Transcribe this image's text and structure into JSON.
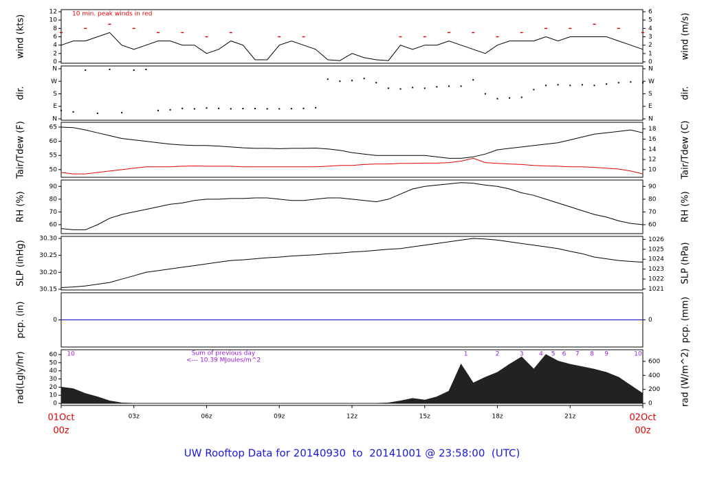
{
  "chart_data": [
    {
      "type": "line",
      "ylabel": "wind (kts)",
      "y2label": "wind (m/s)",
      "note": "10 min. peak winds in red",
      "x": [
        0,
        0.5,
        1,
        1.5,
        2,
        2.5,
        3,
        3.5,
        4,
        4.5,
        5,
        5.5,
        6,
        6.5,
        7,
        7.5,
        8,
        8.5,
        9,
        9.5,
        10,
        10.5,
        11,
        11.5,
        12,
        12.5,
        13,
        13.5,
        14,
        14.5,
        15,
        15.5,
        16,
        16.5,
        17,
        17.5,
        18,
        18.5,
        19,
        19.5,
        20,
        20.5,
        21,
        21.5,
        22,
        22.5,
        23,
        23.5,
        24
      ],
      "series": [
        {
          "color": "#000000",
          "values": [
            4,
            5,
            5,
            6,
            7,
            4,
            3,
            4,
            5,
            5,
            4,
            4,
            2,
            3,
            5,
            4,
            0.5,
            0.5,
            4,
            5,
            4,
            3,
            0.5,
            0.3,
            2,
            1,
            0.5,
            0.3,
            4,
            3,
            4,
            4,
            5,
            4,
            3,
            2,
            4,
            5,
            5,
            5,
            6,
            5,
            6,
            6,
            6,
            6,
            5,
            4,
            3
          ]
        },
        {
          "color": "#e00000",
          "marker": "dash",
          "x": [
            0,
            1,
            2,
            3,
            4,
            5,
            6,
            7,
            8,
            9,
            10,
            11,
            12,
            13,
            14,
            15,
            16,
            17,
            18,
            19,
            20,
            21,
            22,
            23,
            24
          ],
          "values": [
            7,
            8,
            9,
            8,
            7,
            7,
            6,
            7,
            null,
            6,
            6,
            null,
            null,
            null,
            6,
            6,
            7,
            7,
            6,
            7,
            8,
            8,
            9,
            8,
            7
          ]
        }
      ],
      "ylim": [
        -0.33,
        12.5
      ],
      "yticks": [
        0,
        2,
        4,
        6,
        8,
        10,
        12
      ],
      "y2lim": [
        -0.16,
        6.25
      ],
      "y2ticks": [
        0,
        1,
        2,
        3,
        4,
        5,
        6
      ]
    },
    {
      "type": "scatter",
      "ylabel": "dir.",
      "y2label": "dir.",
      "x": [
        0,
        0.5,
        1,
        1.5,
        2,
        2.5,
        3,
        3.5,
        4,
        4.5,
        5,
        5.5,
        6,
        6.5,
        7,
        7.5,
        8,
        8.5,
        9,
        9.5,
        10,
        10.5,
        11,
        11.5,
        12,
        12.5,
        13,
        13.5,
        14,
        14.5,
        15,
        15.5,
        16,
        16.5,
        17,
        17.5,
        18,
        18.5,
        19,
        19.5,
        20,
        20.5,
        21,
        21.5,
        22,
        22.5,
        23,
        23.5,
        24
      ],
      "series": [
        {
          "color": "#000000",
          "values": [
            60,
            50,
            350,
            40,
            355,
            45,
            350,
            355,
            60,
            65,
            75,
            72,
            78,
            75,
            72,
            74,
            74,
            72,
            72,
            73,
            75,
            80,
            285,
            270,
            275,
            290,
            260,
            220,
            215,
            225,
            220,
            230,
            235,
            235,
            280,
            180,
            145,
            150,
            155,
            210,
            240,
            245,
            240,
            245,
            240,
            250,
            260,
            265,
            260
          ]
        }
      ],
      "ylim": [
        -10,
        380
      ],
      "yticks": [
        {
          "value": 0,
          "label": "N"
        },
        {
          "value": 90,
          "label": "E"
        },
        {
          "value": 180,
          "label": "S"
        },
        {
          "value": 270,
          "label": "W"
        },
        {
          "value": 360,
          "label": "N"
        }
      ],
      "y2lim": [
        -10,
        380
      ],
      "y2ticks": [
        {
          "value": 0,
          "label": "N"
        },
        {
          "value": 90,
          "label": "E"
        },
        {
          "value": 180,
          "label": "S"
        },
        {
          "value": 270,
          "label": "W"
        },
        {
          "value": 360,
          "label": "N"
        }
      ]
    },
    {
      "type": "line",
      "ylabel": "Tair/Tdew (F)",
      "y2label": "Tair/Tdew (C)",
      "x": [
        0,
        0.5,
        1,
        1.5,
        2,
        2.5,
        3,
        3.5,
        4,
        4.5,
        5,
        5.5,
        6,
        6.5,
        7,
        7.5,
        8,
        8.5,
        9,
        9.5,
        10,
        10.5,
        11,
        11.5,
        12,
        12.5,
        13,
        13.5,
        14,
        14.5,
        15,
        15.5,
        16,
        16.5,
        17,
        17.5,
        18,
        18.5,
        19,
        19.5,
        20,
        20.5,
        21,
        21.5,
        22,
        22.5,
        23,
        23.5,
        24
      ],
      "series": [
        {
          "color": "#000000",
          "values": [
            65,
            64.8,
            64,
            63,
            62,
            61,
            60.5,
            60,
            59.5,
            59,
            58.7,
            58.5,
            58.5,
            58.3,
            58,
            57.7,
            57.5,
            57.5,
            57.4,
            57.5,
            57.5,
            57.6,
            57.3,
            56.8,
            56,
            55.5,
            55,
            55,
            55,
            55,
            55,
            54.5,
            54,
            54,
            54.5,
            55.5,
            57,
            57.5,
            58,
            58.5,
            59,
            59.5,
            60.5,
            61.5,
            62.5,
            63,
            63.5,
            64,
            63
          ]
        },
        {
          "color": "#e00000",
          "values": [
            49,
            48.5,
            48.5,
            49,
            49.5,
            50,
            50.5,
            51,
            51,
            51,
            51.2,
            51.3,
            51.2,
            51.2,
            51.2,
            51,
            51,
            51,
            51,
            51,
            51,
            51,
            51.2,
            51.5,
            51.5,
            51.8,
            52,
            52,
            52.2,
            52.2,
            52.3,
            52.3,
            52.5,
            53,
            54,
            52.5,
            52.2,
            52,
            51.8,
            51.5,
            51.3,
            51.2,
            51,
            51,
            50.8,
            50.5,
            50.2,
            49.5,
            48.5
          ]
        }
      ],
      "ylim": [
        47.3,
        66.7
      ],
      "yticks": [
        50,
        55,
        60,
        65
      ],
      "y2lim": [
        8.5,
        19.3
      ],
      "y2ticks": [
        10,
        12,
        14,
        16,
        18
      ]
    },
    {
      "type": "line",
      "ylabel": "RH (%)",
      "y2label": "RH (%)",
      "x": [
        0,
        0.5,
        1,
        1.5,
        2,
        2.5,
        3,
        3.5,
        4,
        4.5,
        5,
        5.5,
        6,
        6.5,
        7,
        7.5,
        8,
        8.5,
        9,
        9.5,
        10,
        10.5,
        11,
        11.5,
        12,
        12.5,
        13,
        13.5,
        14,
        14.5,
        15,
        15.5,
        16,
        16.5,
        17,
        17.5,
        18,
        18.5,
        19,
        19.5,
        20,
        20.5,
        21,
        21.5,
        22,
        22.5,
        23,
        23.5,
        24
      ],
      "series": [
        {
          "color": "#000000",
          "values": [
            57,
            56,
            56,
            60,
            65,
            68,
            70,
            72,
            74,
            76,
            77,
            79,
            80,
            80,
            80.5,
            80.5,
            81,
            81,
            80,
            79,
            79,
            80,
            81,
            81,
            80,
            79,
            78,
            80,
            84,
            88,
            90,
            91,
            92,
            93,
            92.5,
            91,
            90,
            88,
            85,
            83,
            80,
            77,
            74,
            71,
            68,
            66,
            63,
            61,
            60
          ]
        }
      ],
      "ylim": [
        53,
        95
      ],
      "yticks": [
        60,
        70,
        80,
        90
      ],
      "y2lim": [
        53,
        95
      ],
      "y2ticks": [
        60,
        70,
        80,
        90
      ]
    },
    {
      "type": "line",
      "ylabel": "SLP (inHg)",
      "y2label": "SLP (hPa)",
      "x": [
        0,
        0.5,
        1,
        1.5,
        2,
        2.5,
        3,
        3.5,
        4,
        4.5,
        5,
        5.5,
        6,
        6.5,
        7,
        7.5,
        8,
        8.5,
        9,
        9.5,
        10,
        10.5,
        11,
        11.5,
        12,
        12.5,
        13,
        13.5,
        14,
        14.5,
        15,
        15.5,
        16,
        16.5,
        17,
        17.5,
        18,
        18.5,
        19,
        19.5,
        20,
        20.5,
        21,
        21.5,
        22,
        22.5,
        23,
        23.5,
        24
      ],
      "series": [
        {
          "color": "#000000",
          "values": [
            30.155,
            30.157,
            30.16,
            30.165,
            30.17,
            30.18,
            30.19,
            30.2,
            30.205,
            30.21,
            30.215,
            30.22,
            30.225,
            30.23,
            30.235,
            30.237,
            30.24,
            30.243,
            30.245,
            30.248,
            30.25,
            30.252,
            30.255,
            30.257,
            30.26,
            30.262,
            30.265,
            30.268,
            30.27,
            30.275,
            30.28,
            30.285,
            30.29,
            30.295,
            30.3,
            30.298,
            30.295,
            30.29,
            30.285,
            30.28,
            30.275,
            30.27,
            30.262,
            30.255,
            30.245,
            30.24,
            30.235,
            30.232,
            30.23
          ]
        }
      ],
      "ylim": [
        30.148,
        30.306
      ],
      "yticks": [
        30.15,
        {
          "value": 30.2,
          "label": "30.20"
        },
        30.25,
        {
          "value": 30.3,
          "label": "30.30"
        }
      ],
      "y2lim": [
        1020.9,
        1026.3
      ],
      "y2ticks": [
        1021,
        1022,
        1023,
        1024,
        1025,
        1026
      ]
    },
    {
      "type": "line",
      "ylabel": "pcp. (in)",
      "y2label": "pcp. (mm)",
      "x": [
        0,
        24
      ],
      "series": [
        {
          "color": "#0000cc",
          "values": [
            0,
            0
          ]
        }
      ],
      "ylim": [
        -1,
        1
      ],
      "yticks": [
        0
      ],
      "y2lim": [
        -25,
        25
      ],
      "y2ticks": [
        0
      ]
    },
    {
      "type": "area",
      "ylabel": "rad(Lgly/hr)",
      "y2label": "rad (W/m^2)",
      "notes": [
        "Sum of previous day",
        "<--- 10.39 MJoules/m^2"
      ],
      "hour_marks": [
        {
          "x": 0.4,
          "label": "10"
        },
        {
          "x": 16.7,
          "label": "1"
        },
        {
          "x": 18.0,
          "label": "2"
        },
        {
          "x": 19.0,
          "label": "3"
        },
        {
          "x": 19.8,
          "label": "4"
        },
        {
          "x": 20.3,
          "label": "5"
        },
        {
          "x": 20.75,
          "label": "6"
        },
        {
          "x": 21.3,
          "label": "7"
        },
        {
          "x": 21.9,
          "label": "8"
        },
        {
          "x": 22.5,
          "label": "9"
        },
        {
          "x": 23.8,
          "label": "10"
        }
      ],
      "x": [
        0,
        0.5,
        1,
        1.5,
        2,
        2.5,
        3,
        3.5,
        4,
        4.5,
        5,
        5.5,
        6,
        6.5,
        7,
        7.5,
        8,
        8.5,
        9,
        9.5,
        10,
        10.5,
        11,
        11.5,
        12,
        12.5,
        13,
        13.5,
        14,
        14.5,
        15,
        15.5,
        16,
        16.5,
        17,
        17.5,
        18,
        18.5,
        19,
        19.5,
        20,
        20.5,
        21,
        21.5,
        22,
        22.5,
        23,
        23.5,
        24
      ],
      "series": [
        {
          "color": "#222222",
          "values": [
            20,
            18,
            12,
            8,
            3,
            0.5,
            0,
            0,
            0,
            0,
            0,
            0,
            0,
            0,
            0,
            0,
            0,
            0,
            0,
            0,
            0,
            0,
            0,
            0,
            0,
            0,
            0,
            0.5,
            3,
            6,
            4,
            8,
            15,
            48,
            25,
            32,
            38,
            48,
            57,
            42,
            60,
            52,
            48,
            45,
            42,
            38,
            32,
            22,
            12
          ]
        }
      ],
      "ylim": [
        -2.5,
        65.9
      ],
      "yticks": [
        0,
        10,
        20,
        30,
        40,
        50,
        60
      ],
      "y2lim": [
        -29,
        766
      ],
      "y2ticks": [
        0,
        200,
        400,
        600
      ]
    }
  ],
  "x_axis": {
    "xlim": [
      0,
      24
    ],
    "xticks": [
      {
        "value": 0,
        "label": "00z"
      },
      {
        "value": 3,
        "label": "03z"
      },
      {
        "value": 6,
        "label": "06z"
      },
      {
        "value": 9,
        "label": "09z"
      },
      {
        "value": 12,
        "label": "12z"
      },
      {
        "value": 15,
        "label": "15z"
      },
      {
        "value": 18,
        "label": "18z"
      },
      {
        "value": 21,
        "label": "21z"
      },
      {
        "value": 24,
        "label": "00z"
      }
    ],
    "date_labels": [
      {
        "value": 0,
        "label": "01Oct"
      },
      {
        "value": 24,
        "label": "02Oct"
      }
    ]
  },
  "footer": "UW Rooftop Data for 20140930  to  20141001 @ 23:58:00  (UTC)"
}
